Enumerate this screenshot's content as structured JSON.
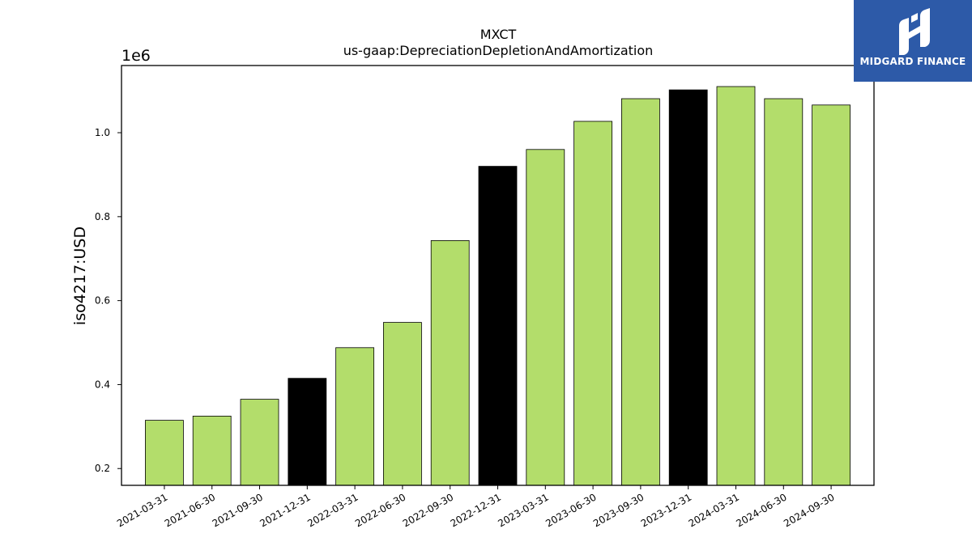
{
  "brand": {
    "name": "MIDGARD FINANCE",
    "color": "#2d5aa8",
    "icon": "midgard-logo-icon"
  },
  "chart_data": {
    "type": "bar",
    "title": "MXCT",
    "subtitle": "us-gaap:DepreciationDepletionAndAmortization",
    "ylabel": "iso4217:USD",
    "xlabel": "",
    "y_multiplier_label": "1e6",
    "ylim": [
      160000,
      1160000
    ],
    "yticks": [
      0.2,
      0.4,
      0.6,
      0.8,
      1.0
    ],
    "ytick_labels": [
      "0.2",
      "0.4",
      "0.6",
      "0.8",
      "1.0"
    ],
    "grid": false,
    "legend": "none",
    "categories": [
      "2021-03-31",
      "2021-06-30",
      "2021-09-30",
      "2021-12-31",
      "2022-03-31",
      "2022-06-30",
      "2022-09-30",
      "2022-12-31",
      "2023-03-31",
      "2023-06-30",
      "2023-09-30",
      "2023-12-31",
      "2024-03-31",
      "2024-06-30",
      "2024-09-30"
    ],
    "values": [
      315000,
      325000,
      365000,
      415000,
      488000,
      548000,
      743000,
      920000,
      960000,
      1027000,
      1081000,
      1102000,
      1110000,
      1081000,
      1066000
    ],
    "bar_colors": [
      "#b3dd6b",
      "#b3dd6b",
      "#b3dd6b",
      "#000000",
      "#b3dd6b",
      "#b3dd6b",
      "#b3dd6b",
      "#000000",
      "#b3dd6b",
      "#b3dd6b",
      "#b3dd6b",
      "#000000",
      "#b3dd6b",
      "#b3dd6b",
      "#b3dd6b"
    ]
  }
}
